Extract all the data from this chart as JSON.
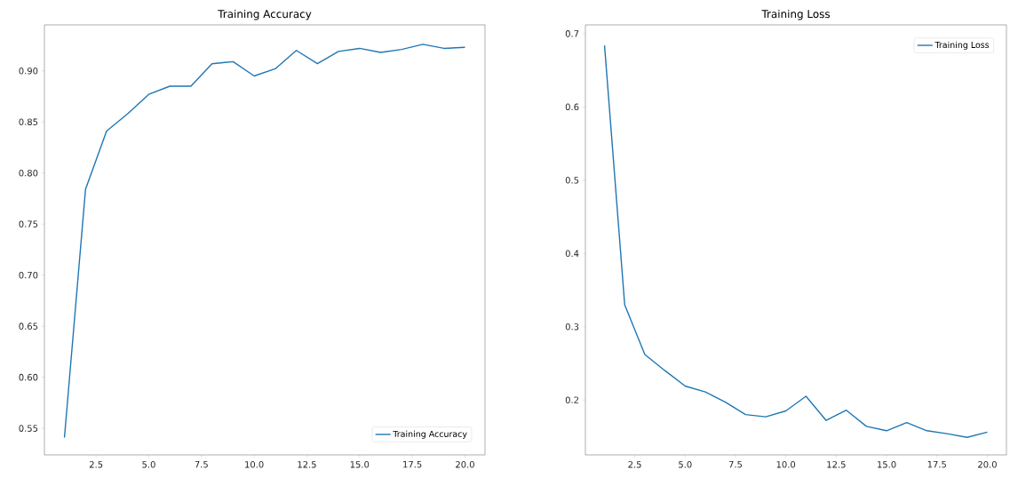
{
  "chart_data": [
    {
      "type": "line",
      "title": "Training Accuracy",
      "x": [
        1,
        2,
        3,
        4,
        5,
        6,
        7,
        8,
        9,
        10,
        11,
        12,
        13,
        14,
        15,
        16,
        17,
        18,
        19,
        20
      ],
      "series": [
        {
          "name": "Training Accuracy",
          "color": "#1f77b4",
          "values": [
            0.541,
            0.784,
            0.841,
            0.858,
            0.877,
            0.885,
            0.885,
            0.907,
            0.909,
            0.895,
            0.902,
            0.92,
            0.907,
            0.919,
            0.922,
            0.918,
            0.921,
            0.926,
            0.922,
            0.923
          ]
        }
      ],
      "xlim": [
        0.05,
        20.95
      ],
      "ylim": [
        0.524,
        0.945
      ],
      "xticks": [
        {
          "value": 2.5,
          "label": "2.5"
        },
        {
          "value": 5,
          "label": "5.0"
        },
        {
          "value": 7.5,
          "label": "7.5"
        },
        {
          "value": 10,
          "label": "10.0"
        },
        {
          "value": 12.5,
          "label": "12.5"
        },
        {
          "value": 15,
          "label": "15.0"
        },
        {
          "value": 17.5,
          "label": "17.5"
        },
        {
          "value": 20,
          "label": "20.0"
        }
      ],
      "yticks": [
        {
          "value": 0.55,
          "label": "0.55"
        },
        {
          "value": 0.6,
          "label": "0.60"
        },
        {
          "value": 0.65,
          "label": "0.65"
        },
        {
          "value": 0.7,
          "label": "0.70"
        },
        {
          "value": 0.75,
          "label": "0.75"
        },
        {
          "value": 0.8,
          "label": "0.80"
        },
        {
          "value": 0.85,
          "label": "0.85"
        },
        {
          "value": 0.9,
          "label": "0.90"
        }
      ],
      "legend": "bottom right",
      "grid": false,
      "marker": "none",
      "line_style": "solid"
    },
    {
      "type": "line",
      "title": "Training Loss",
      "x": [
        1,
        2,
        3,
        4,
        5,
        6,
        7,
        8,
        9,
        10,
        11,
        12,
        13,
        14,
        15,
        16,
        17,
        18,
        19,
        20
      ],
      "series": [
        {
          "name": "Training Loss",
          "color": "#1f77b4",
          "values": [
            0.684,
            0.33,
            0.262,
            0.24,
            0.219,
            0.211,
            0.197,
            0.18,
            0.177,
            0.185,
            0.205,
            0.172,
            0.186,
            0.164,
            0.158,
            0.169,
            0.158,
            0.154,
            0.149,
            0.156
          ]
        }
      ],
      "xlim": [
        0.05,
        20.95
      ],
      "ylim": [
        0.125,
        0.712
      ],
      "xticks": [
        {
          "value": 2.5,
          "label": "2.5"
        },
        {
          "value": 5,
          "label": "5.0"
        },
        {
          "value": 7.5,
          "label": "7.5"
        },
        {
          "value": 10,
          "label": "10.0"
        },
        {
          "value": 12.5,
          "label": "12.5"
        },
        {
          "value": 15,
          "label": "15.0"
        },
        {
          "value": 17.5,
          "label": "17.5"
        },
        {
          "value": 20,
          "label": "20.0"
        }
      ],
      "yticks": [
        0.2,
        0.3,
        0.4,
        0.5,
        0.6,
        0.7
      ],
      "legend": "top right",
      "grid": false,
      "marker": "none",
      "line_style": "solid"
    }
  ]
}
